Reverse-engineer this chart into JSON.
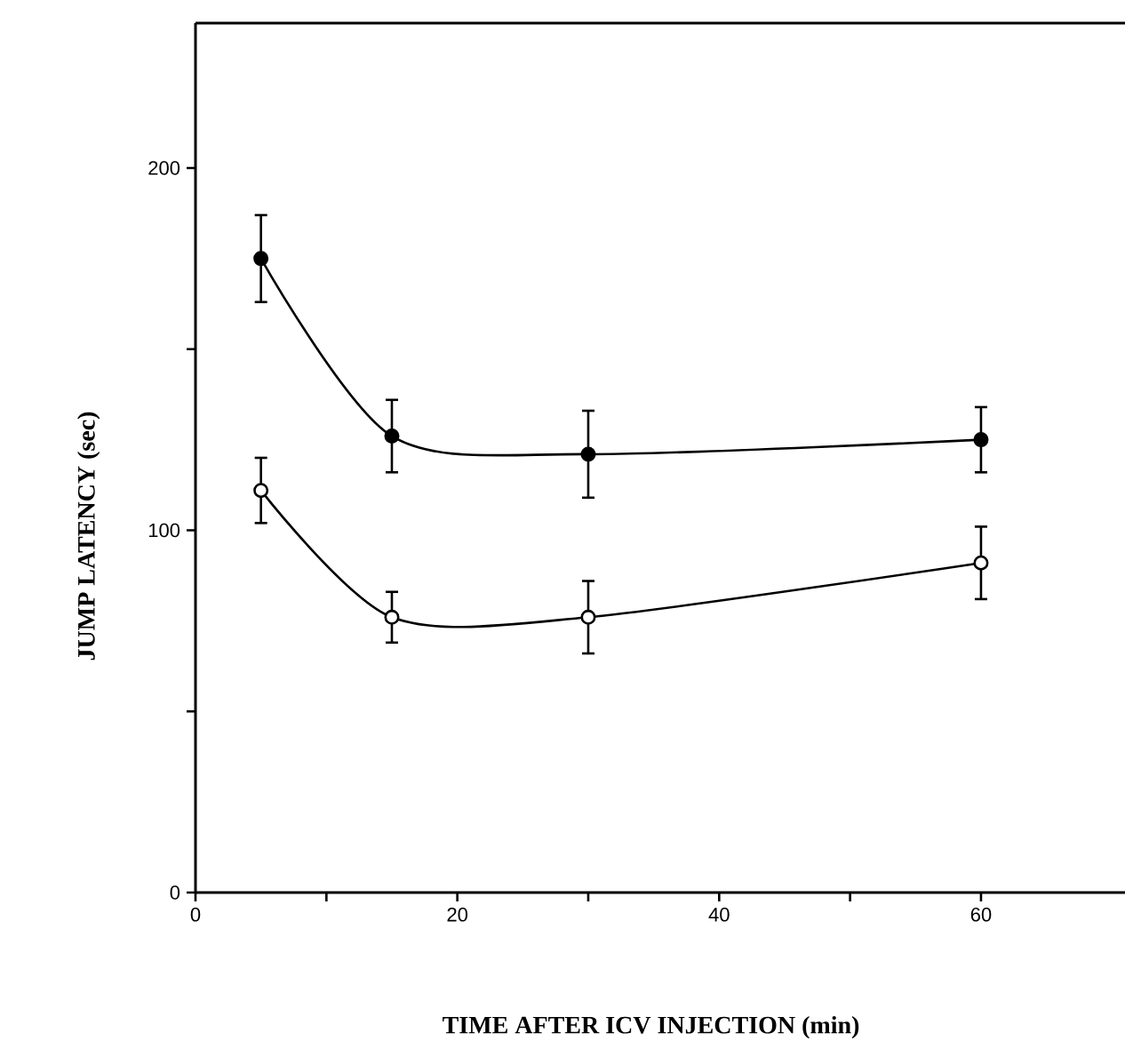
{
  "chart_data": {
    "type": "line",
    "xlabel": "TIME AFTER ICV INJECTION (min)",
    "ylabel": "JUMP LATENCY (sec)",
    "x": [
      5,
      15,
      30,
      60
    ],
    "series": [
      {
        "color": "#000000",
        "values": [
          175,
          126,
          121,
          125
        ],
        "errors": [
          12,
          10,
          12,
          9
        ]
      },
      {
        "color": "#000000",
        "values": [
          111,
          76,
          76,
          91
        ],
        "errors": [
          9,
          7,
          10,
          10
        ]
      }
    ],
    "xlim": [
      0,
      71
    ],
    "ylim": [
      0,
      240
    ],
    "xticks": [
      0,
      {
        "value": 10,
        "label": null
      },
      20,
      {
        "value": 30,
        "label": null
      },
      40,
      {
        "value": 50,
        "label": null
      },
      60
    ],
    "yticks": [
      0,
      {
        "value": 50,
        "label": null
      },
      100,
      {
        "value": 150,
        "label": null
      },
      200
    ],
    "marker": "circle",
    "line_style": "solid",
    "grid": false,
    "legend": false
  }
}
